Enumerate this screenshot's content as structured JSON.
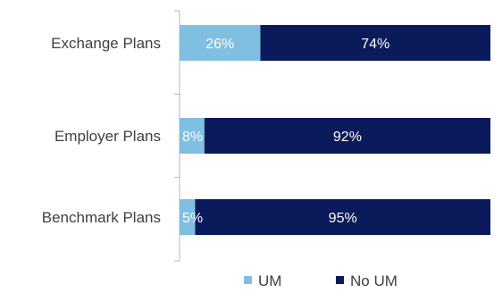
{
  "chart_data": {
    "type": "bar",
    "orientation": "horizontal",
    "stacked": true,
    "categories": [
      "Exchange Plans",
      "Employer Plans",
      "Benchmark Plans"
    ],
    "series": [
      {
        "name": "UM",
        "values": [
          26,
          8,
          5
        ],
        "labels": [
          "26%",
          "8%",
          "5%"
        ],
        "color": "#7fbfe0"
      },
      {
        "name": "No UM",
        "values": [
          74,
          92,
          95
        ],
        "labels": [
          "74%",
          "92%",
          "95%"
        ],
        "color": "#0a1a5a"
      }
    ],
    "xlim": [
      0,
      100
    ],
    "grid": false,
    "legend_position": "bottom"
  },
  "legend": {
    "items": [
      {
        "label": "UM",
        "color": "#7fbfe0"
      },
      {
        "label": "No UM",
        "color": "#0a1a5a"
      }
    ]
  }
}
